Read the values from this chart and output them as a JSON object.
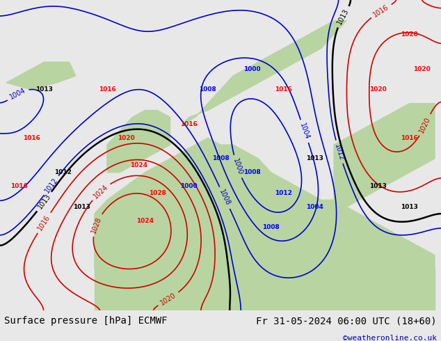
{
  "title_left": "Surface pressure [hPa] ECMWF",
  "title_right": "Fr 31-05-2024 06:00 UTC (18+60)",
  "watermark": "©weatheronline.co.uk",
  "bg_color": "#c8d8e8",
  "land_color": "#b8d4a0",
  "text_color_black": "#000000",
  "text_color_blue": "#0000cc",
  "text_color_red": "#cc0000",
  "contour_black": "#000000",
  "contour_blue": "#0000cc",
  "contour_red": "#cc0000",
  "figsize": [
    6.34,
    4.9
  ],
  "dpi": 100
}
